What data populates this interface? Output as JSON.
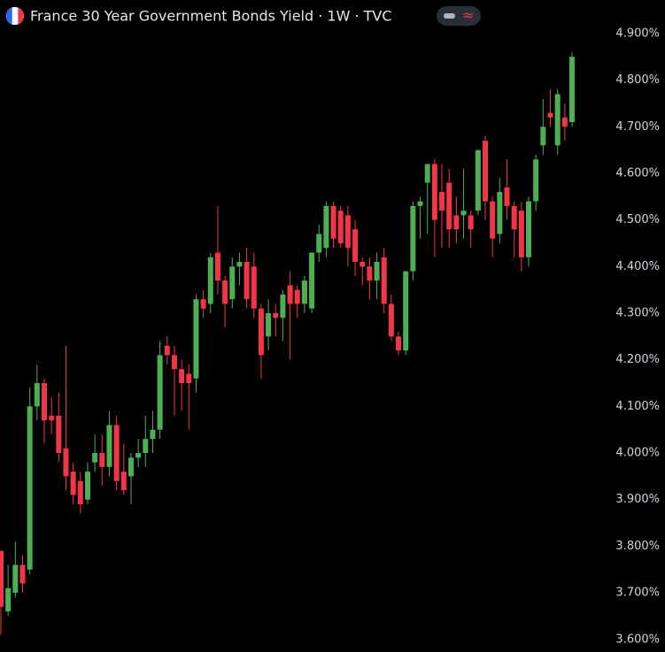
{
  "chart_data": {
    "type": "candlestick",
    "title": "France 30 Year Government Bonds Yield · 1W · TVC",
    "up_color": "#4caf50",
    "down_color": "#f23645",
    "ylim": [
      3.573,
      4.972
    ],
    "yticks": [
      {
        "value": 3.6,
        "label": "3.600%"
      },
      {
        "value": 3.7,
        "label": "3.700%"
      },
      {
        "value": 3.8,
        "label": "3.800%"
      },
      {
        "value": 3.9,
        "label": "3.900%"
      },
      {
        "value": 4.0,
        "label": "4.000%"
      },
      {
        "value": 4.1,
        "label": "4.100%"
      },
      {
        "value": 4.2,
        "label": "4.200%"
      },
      {
        "value": 4.3,
        "label": "4.300%"
      },
      {
        "value": 4.4,
        "label": "4.400%"
      },
      {
        "value": 4.5,
        "label": "4.500%"
      },
      {
        "value": 4.6,
        "label": "4.600%"
      },
      {
        "value": 4.7,
        "label": "4.700%"
      },
      {
        "value": 4.8,
        "label": "4.800%"
      },
      {
        "value": 4.9,
        "label": "4.900%"
      }
    ],
    "open": [
      3.79,
      3.66,
      3.7,
      3.76,
      3.75,
      4.1,
      4.15,
      4.08,
      4.08,
      4.01,
      3.96,
      3.94,
      3.9,
      3.98,
      4.0,
      3.97,
      4.06,
      3.96,
      3.95,
      3.99,
      4.0,
      4.03,
      4.05,
      4.23,
      4.21,
      4.18,
      4.17,
      4.16,
      4.33,
      4.32,
      4.43,
      4.37,
      4.33,
      4.4,
      4.41,
      4.4,
      4.31,
      4.25,
      4.3,
      4.29,
      4.36,
      4.35,
      4.32,
      4.31,
      4.43,
      4.44,
      4.53,
      4.52,
      4.51,
      4.48,
      4.41,
      4.4,
      4.37,
      4.42,
      4.32,
      4.25,
      4.22,
      4.39,
      4.53,
      4.58,
      4.62,
      4.56,
      4.58,
      4.51,
      4.51,
      4.51,
      4.52,
      4.67,
      4.54,
      4.47,
      4.57,
      4.53,
      4.52,
      4.42,
      4.54,
      4.66,
      4.73,
      4.66,
      4.72,
      4.71
    ],
    "high": [
      3.79,
      3.76,
      3.81,
      3.78,
      4.14,
      4.19,
      4.16,
      4.12,
      4.13,
      4.23,
      3.98,
      3.96,
      3.98,
      4.04,
      4.04,
      4.09,
      4.08,
      4.02,
      4.0,
      4.03,
      4.08,
      4.09,
      4.24,
      4.25,
      4.23,
      4.2,
      4.19,
      4.34,
      4.35,
      4.43,
      4.53,
      4.38,
      4.42,
      4.43,
      4.44,
      4.43,
      4.32,
      4.33,
      4.32,
      4.35,
      4.39,
      4.36,
      4.38,
      4.43,
      4.49,
      4.54,
      4.54,
      4.53,
      4.53,
      4.5,
      4.42,
      4.42,
      4.43,
      4.44,
      4.34,
      4.26,
      4.39,
      4.54,
      4.55,
      4.62,
      4.63,
      4.62,
      4.61,
      4.55,
      4.61,
      4.52,
      4.65,
      4.68,
      4.55,
      4.59,
      4.63,
      4.54,
      4.54,
      4.55,
      4.64,
      4.76,
      4.78,
      4.78,
      4.75,
      4.86
    ],
    "low": [
      3.61,
      3.65,
      3.69,
      3.7,
      3.74,
      4.07,
      4.02,
      4.04,
      3.98,
      3.92,
      3.89,
      3.87,
      3.89,
      3.96,
      3.93,
      3.95,
      3.92,
      3.91,
      3.89,
      3.97,
      3.97,
      4.0,
      4.03,
      4.19,
      4.08,
      4.09,
      4.05,
      4.13,
      4.29,
      4.3,
      4.34,
      4.27,
      4.31,
      4.36,
      4.31,
      4.29,
      4.16,
      4.22,
      4.25,
      4.24,
      4.2,
      4.29,
      4.3,
      4.3,
      4.41,
      4.42,
      4.44,
      4.44,
      4.4,
      4.38,
      4.36,
      4.33,
      4.33,
      4.3,
      4.24,
      4.21,
      4.21,
      4.37,
      4.46,
      4.47,
      4.42,
      4.44,
      4.44,
      4.45,
      4.46,
      4.44,
      4.51,
      4.5,
      4.42,
      4.45,
      4.5,
      4.42,
      4.39,
      4.4,
      4.52,
      4.64,
      4.7,
      4.64,
      4.67,
      4.7
    ],
    "close": [
      3.67,
      3.71,
      3.76,
      3.72,
      4.1,
      4.15,
      4.07,
      4.07,
      4.0,
      3.95,
      3.91,
      3.89,
      3.96,
      4.0,
      3.97,
      4.06,
      3.94,
      3.92,
      3.99,
      4.0,
      4.03,
      4.05,
      4.21,
      4.21,
      4.18,
      4.15,
      4.15,
      4.33,
      4.31,
      4.42,
      4.37,
      4.32,
      4.4,
      4.41,
      4.33,
      4.31,
      4.21,
      4.3,
      4.29,
      4.34,
      4.32,
      4.32,
      4.37,
      4.43,
      4.47,
      4.53,
      4.46,
      4.45,
      4.44,
      4.41,
      4.4,
      4.37,
      4.41,
      4.32,
      4.25,
      4.22,
      4.39,
      4.53,
      4.54,
      4.62,
      4.5,
      4.52,
      4.48,
      4.48,
      4.52,
      4.48,
      4.65,
      4.54,
      4.46,
      4.56,
      4.53,
      4.48,
      4.42,
      4.54,
      4.63,
      4.7,
      4.72,
      4.77,
      4.7,
      4.85
    ]
  }
}
